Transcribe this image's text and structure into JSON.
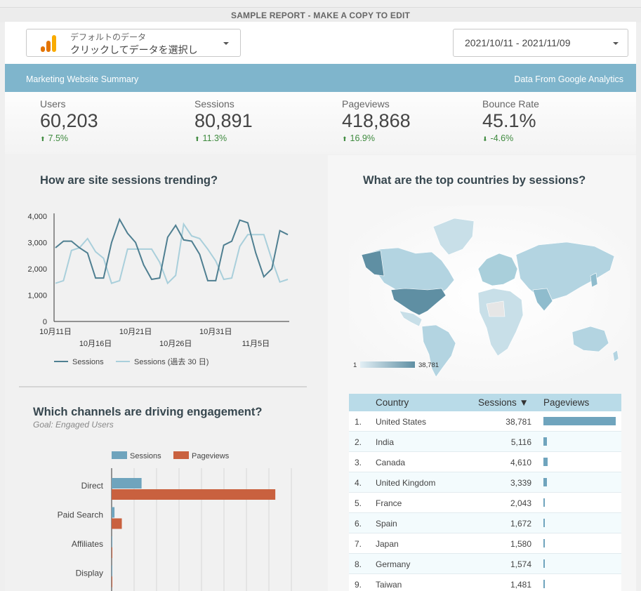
{
  "report": {
    "title": "SAMPLE REPORT - MAKE A COPY TO EDIT"
  },
  "data_source": {
    "line1": "デフォルトのデータ",
    "line2": "クリックしてデータを選択し"
  },
  "date_range": {
    "value": "2021/10/11 - 2021/11/09"
  },
  "banner": {
    "left": "Marketing Website Summary",
    "right": "Data From Google Analytics"
  },
  "kpis": [
    {
      "label": "Users",
      "value": "60,203",
      "delta": "7.5%",
      "direction": "up"
    },
    {
      "label": "Sessions",
      "value": "80,891",
      "delta": "11.3%",
      "direction": "up"
    },
    {
      "label": "Pageviews",
      "value": "418,868",
      "delta": "16.9%",
      "direction": "up"
    },
    {
      "label": "Bounce Rate",
      "value": "45.1%",
      "delta": "-4.6%",
      "direction": "down"
    }
  ],
  "colors": {
    "accent": "#7fb5cc",
    "line_main": "#4f7f91",
    "line_prev": "#a9cfdb",
    "bar_sessions": "#6fa4bd",
    "bar_pageviews": "#c9613f",
    "positive": "#3e8a3e"
  },
  "trend": {
    "title": "How are site sessions trending?",
    "chart_data": {
      "type": "line",
      "x_ticks_top": [
        "10月11日",
        "10月21日",
        "10月31日"
      ],
      "x_ticks_bottom": [
        "10月16日",
        "10月26日",
        "11月5日"
      ],
      "y_ticks": [
        "4,000",
        "3,000",
        "2,000",
        "1,000",
        "0"
      ],
      "ylim": [
        0,
        4000
      ],
      "series": [
        {
          "name": "Sessions",
          "values": [
            2800,
            3050,
            3050,
            2800,
            2600,
            1650,
            1650,
            3000,
            3880,
            3350,
            3000,
            2150,
            1600,
            1650,
            3200,
            3650,
            3100,
            3050,
            2550,
            1550,
            1550,
            2900,
            3050,
            3850,
            3750,
            2600,
            1700,
            2000,
            3450,
            3300
          ]
        },
        {
          "name": "Sessions (過去 30 日)",
          "values": [
            1450,
            1550,
            2700,
            2800,
            3150,
            2650,
            2400,
            1450,
            1550,
            2750,
            2750,
            2750,
            2750,
            2250,
            1450,
            1750,
            3700,
            3250,
            3150,
            2750,
            2300,
            1600,
            1650,
            2850,
            3300,
            3300,
            3300,
            2350,
            1500,
            1600
          ]
        }
      ]
    }
  },
  "map": {
    "title": "What are the top countries by sessions?",
    "legend_min": "1",
    "legend_max": "38,781"
  },
  "channels": {
    "title": "Which channels are driving engagement?",
    "subtitle": "Goal: Engaged Users",
    "chart_data": {
      "type": "bar",
      "categories": [
        "Direct",
        "Paid Search",
        "Affiliates",
        "Display"
      ],
      "series": [
        {
          "name": "Sessions",
          "values": [
            47000,
            4500,
            500,
            300
          ]
        },
        {
          "name": "Pageviews",
          "values": [
            257000,
            16000,
            1000,
            600
          ]
        }
      ],
      "xlim": [
        0,
        280000
      ]
    }
  },
  "country_table": {
    "headers": {
      "country": "Country",
      "sessions": "Sessions ▼",
      "pageviews": "Pageviews"
    },
    "rows": [
      {
        "num": "1.",
        "country": "United States",
        "sessions": "38,781",
        "pageviews_share": 1.0
      },
      {
        "num": "2.",
        "country": "India",
        "sessions": "5,116",
        "pageviews_share": 0.045
      },
      {
        "num": "3.",
        "country": "Canada",
        "sessions": "4,610",
        "pageviews_share": 0.055
      },
      {
        "num": "4.",
        "country": "United Kingdom",
        "sessions": "3,339",
        "pageviews_share": 0.045
      },
      {
        "num": "5.",
        "country": "France",
        "sessions": "2,043",
        "pageviews_share": 0.02
      },
      {
        "num": "6.",
        "country": "Spain",
        "sessions": "1,672",
        "pageviews_share": 0.015
      },
      {
        "num": "7.",
        "country": "Japan",
        "sessions": "1,580",
        "pageviews_share": 0.02
      },
      {
        "num": "8.",
        "country": "Germany",
        "sessions": "1,574",
        "pageviews_share": 0.015
      },
      {
        "num": "9.",
        "country": "Taiwan",
        "sessions": "1,481",
        "pageviews_share": 0.02
      }
    ]
  }
}
